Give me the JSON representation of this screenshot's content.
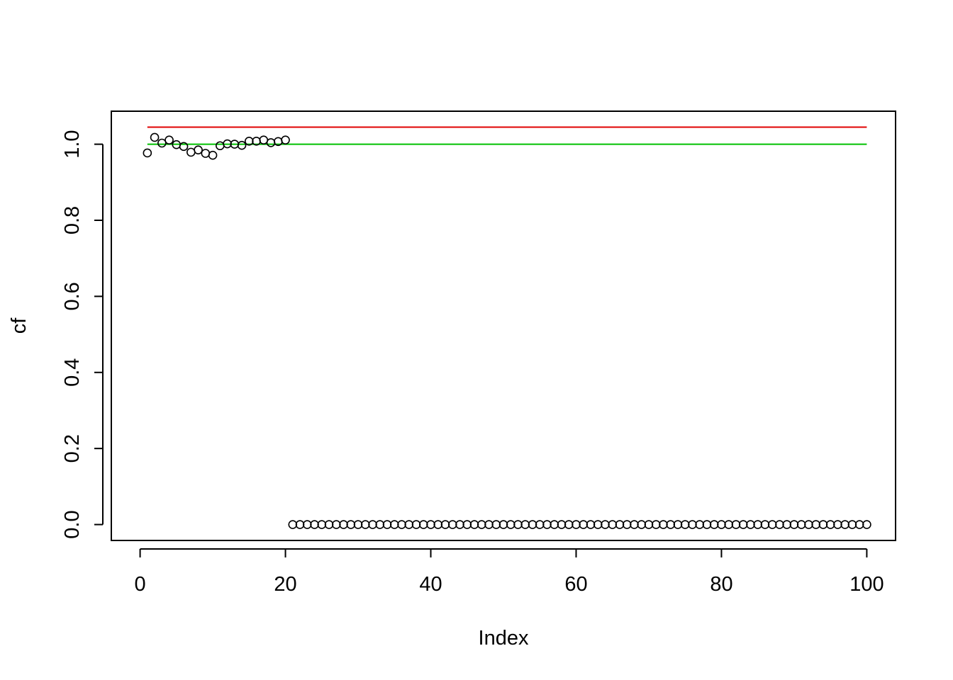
{
  "chart_data": {
    "type": "scatter",
    "xlabel": "Index",
    "ylabel": "cf",
    "xlim": [
      -3.96,
      103.96
    ],
    "ylim": [
      -0.0418,
      1.0868
    ],
    "x_ticks": [
      0,
      20,
      40,
      60,
      80,
      100
    ],
    "x_tick_labels": [
      "0",
      "20",
      "40",
      "60",
      "80",
      "100"
    ],
    "y_ticks": [
      0.0,
      0.2,
      0.4,
      0.6,
      0.8,
      1.0
    ],
    "y_tick_labels": [
      "0.0",
      "0.2",
      "0.4",
      "0.6",
      "0.8",
      "1.0"
    ],
    "grid": false,
    "points": {
      "marker": "open-circle",
      "color": "#000000",
      "x_start": 1,
      "values": [
        0.977,
        1.018,
        1.003,
        1.011,
        0.999,
        0.994,
        0.979,
        0.985,
        0.976,
        0.971,
        0.996,
        1.001,
        1.0,
        0.997,
        1.008,
        1.008,
        1.011,
        1.004,
        1.007,
        1.011,
        0,
        0,
        0,
        0,
        0,
        0,
        0,
        0,
        0,
        0,
        0,
        0,
        0,
        0,
        0,
        0,
        0,
        0,
        0,
        0,
        0,
        0,
        0,
        0,
        0,
        0,
        0,
        0,
        0,
        0,
        0,
        0,
        0,
        0,
        0,
        0,
        0,
        0,
        0,
        0,
        0,
        0,
        0,
        0,
        0,
        0,
        0,
        0,
        0,
        0,
        0,
        0,
        0,
        0,
        0,
        0,
        0,
        0,
        0,
        0,
        0,
        0,
        0,
        0,
        0,
        0,
        0,
        0,
        0,
        0,
        0,
        0,
        0,
        0,
        0,
        0,
        0,
        0,
        0,
        0
      ]
    },
    "lines": [
      {
        "color": "#e00000",
        "x": [
          1,
          100
        ],
        "y": [
          1.045,
          1.045
        ]
      },
      {
        "color": "#00c000",
        "x": [
          1,
          100
        ],
        "y": [
          1.0,
          1.0
        ]
      }
    ]
  }
}
